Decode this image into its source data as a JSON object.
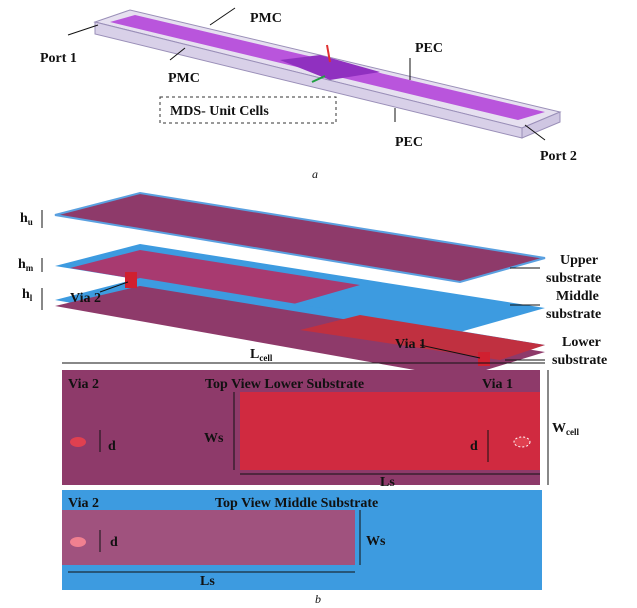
{
  "part_a": {
    "labels": {
      "pmc_top": "PMC",
      "port1": "Port 1",
      "pmc_bottom": "PMC",
      "mds": "MDS- Unit Cells",
      "pec_top": "PEC",
      "pec_bottom": "PEC",
      "port2": "Port 2"
    },
    "caption": "a"
  },
  "part_b": {
    "heights": [
      {
        "symbol": "h",
        "sub": "u"
      },
      {
        "symbol": "h",
        "sub": "m"
      },
      {
        "symbol": "h",
        "sub": "l"
      }
    ],
    "via2": "Via 2",
    "layers": [
      [
        "Upper",
        "substrate"
      ],
      [
        "Middle",
        "substrate"
      ],
      [
        "Lower",
        "substrate"
      ]
    ],
    "via1": "Via 1",
    "length": {
      "symbol": "L",
      "sub": "cell"
    },
    "lower_view": {
      "title": "Top View Lower Substrate",
      "via2": "Via 2",
      "via1": "Via 1",
      "d_left": "d",
      "ws": "Ws",
      "d_right": "d",
      "ls": "Ls",
      "width": {
        "symbol": "W",
        "sub": "cell"
      }
    },
    "middle_view": {
      "title": "Top View Middle Substrate",
      "via2": "Via 2",
      "d": "d",
      "ws": "Ws",
      "ls": "Ls"
    },
    "caption": "b"
  }
}
